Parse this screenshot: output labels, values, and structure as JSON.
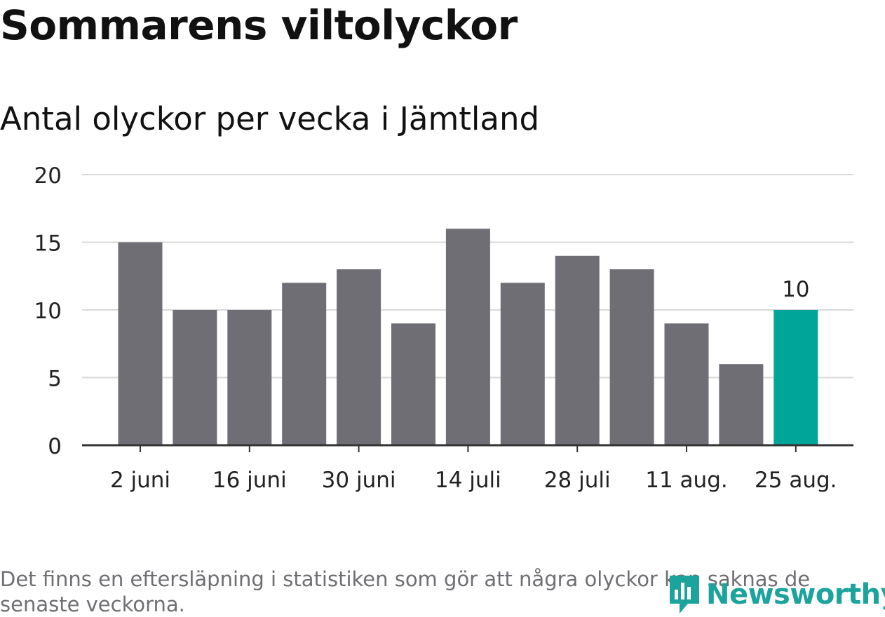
{
  "title": "Sommarens viltolyckor",
  "subtitle": "Antal olyckor per vecka i Jämtland",
  "footnote": "Det finns en eftersläpning i statistiken som gör att några olyckor kan saknas de senaste veckorna.",
  "logo": {
    "text": "Newsworthy",
    "icon": "newsworthy-logo-icon"
  },
  "colors": {
    "bar": "#6f6e74",
    "highlight": "#00a59a",
    "grid": "#d9d9d9",
    "axis": "#333333",
    "logo": "#1ba39c"
  },
  "chart_data": {
    "type": "bar",
    "values": [
      15,
      10,
      10,
      12,
      13,
      9,
      16,
      12,
      14,
      13,
      9,
      6,
      10
    ],
    "highlight_index": 12,
    "highlight_label": "10",
    "x_ticks": [
      "2 juni",
      "16 juni",
      "30 juni",
      "14 juli",
      "28 juli",
      "11 aug.",
      "25 aug."
    ],
    "x_tick_every": 2,
    "y_ticks": [
      0,
      5,
      10,
      15,
      20
    ],
    "ylim": [
      0,
      20
    ],
    "grid": true,
    "xlabel": "",
    "ylabel": ""
  }
}
